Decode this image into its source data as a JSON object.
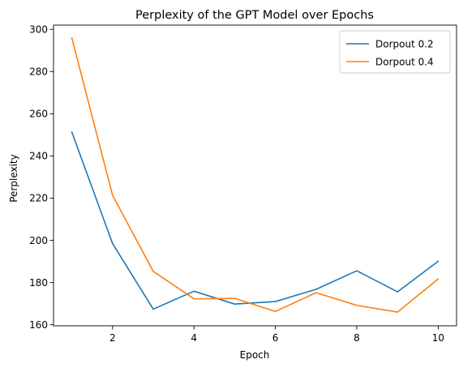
{
  "chart_data": {
    "type": "line",
    "title": "Perplexity of the GPT Model over Epochs",
    "xlabel": "Epoch",
    "ylabel": "Perplexity",
    "xlim": [
      0.55,
      10.45
    ],
    "ylim": [
      159.5,
      302.0
    ],
    "xticks": [
      2,
      4,
      6,
      8,
      10
    ],
    "yticks": [
      160,
      180,
      200,
      220,
      240,
      260,
      280,
      300
    ],
    "grid": false,
    "legend_position": "top-right",
    "x": [
      1,
      2,
      3,
      4,
      5,
      6,
      7,
      8,
      9,
      10
    ],
    "series": [
      {
        "name": "Dorpout 0.2",
        "color": "#1f77b4",
        "values": [
          251.3,
          198.5,
          167.4,
          175.9,
          169.8,
          171.0,
          176.8,
          185.6,
          175.6,
          190.1
        ]
      },
      {
        "name": "Dorpout 0.4",
        "color": "#ff7f0e",
        "values": [
          295.9,
          221.4,
          185.3,
          172.3,
          172.5,
          166.3,
          175.2,
          169.2,
          166.0,
          181.7
        ]
      }
    ]
  }
}
